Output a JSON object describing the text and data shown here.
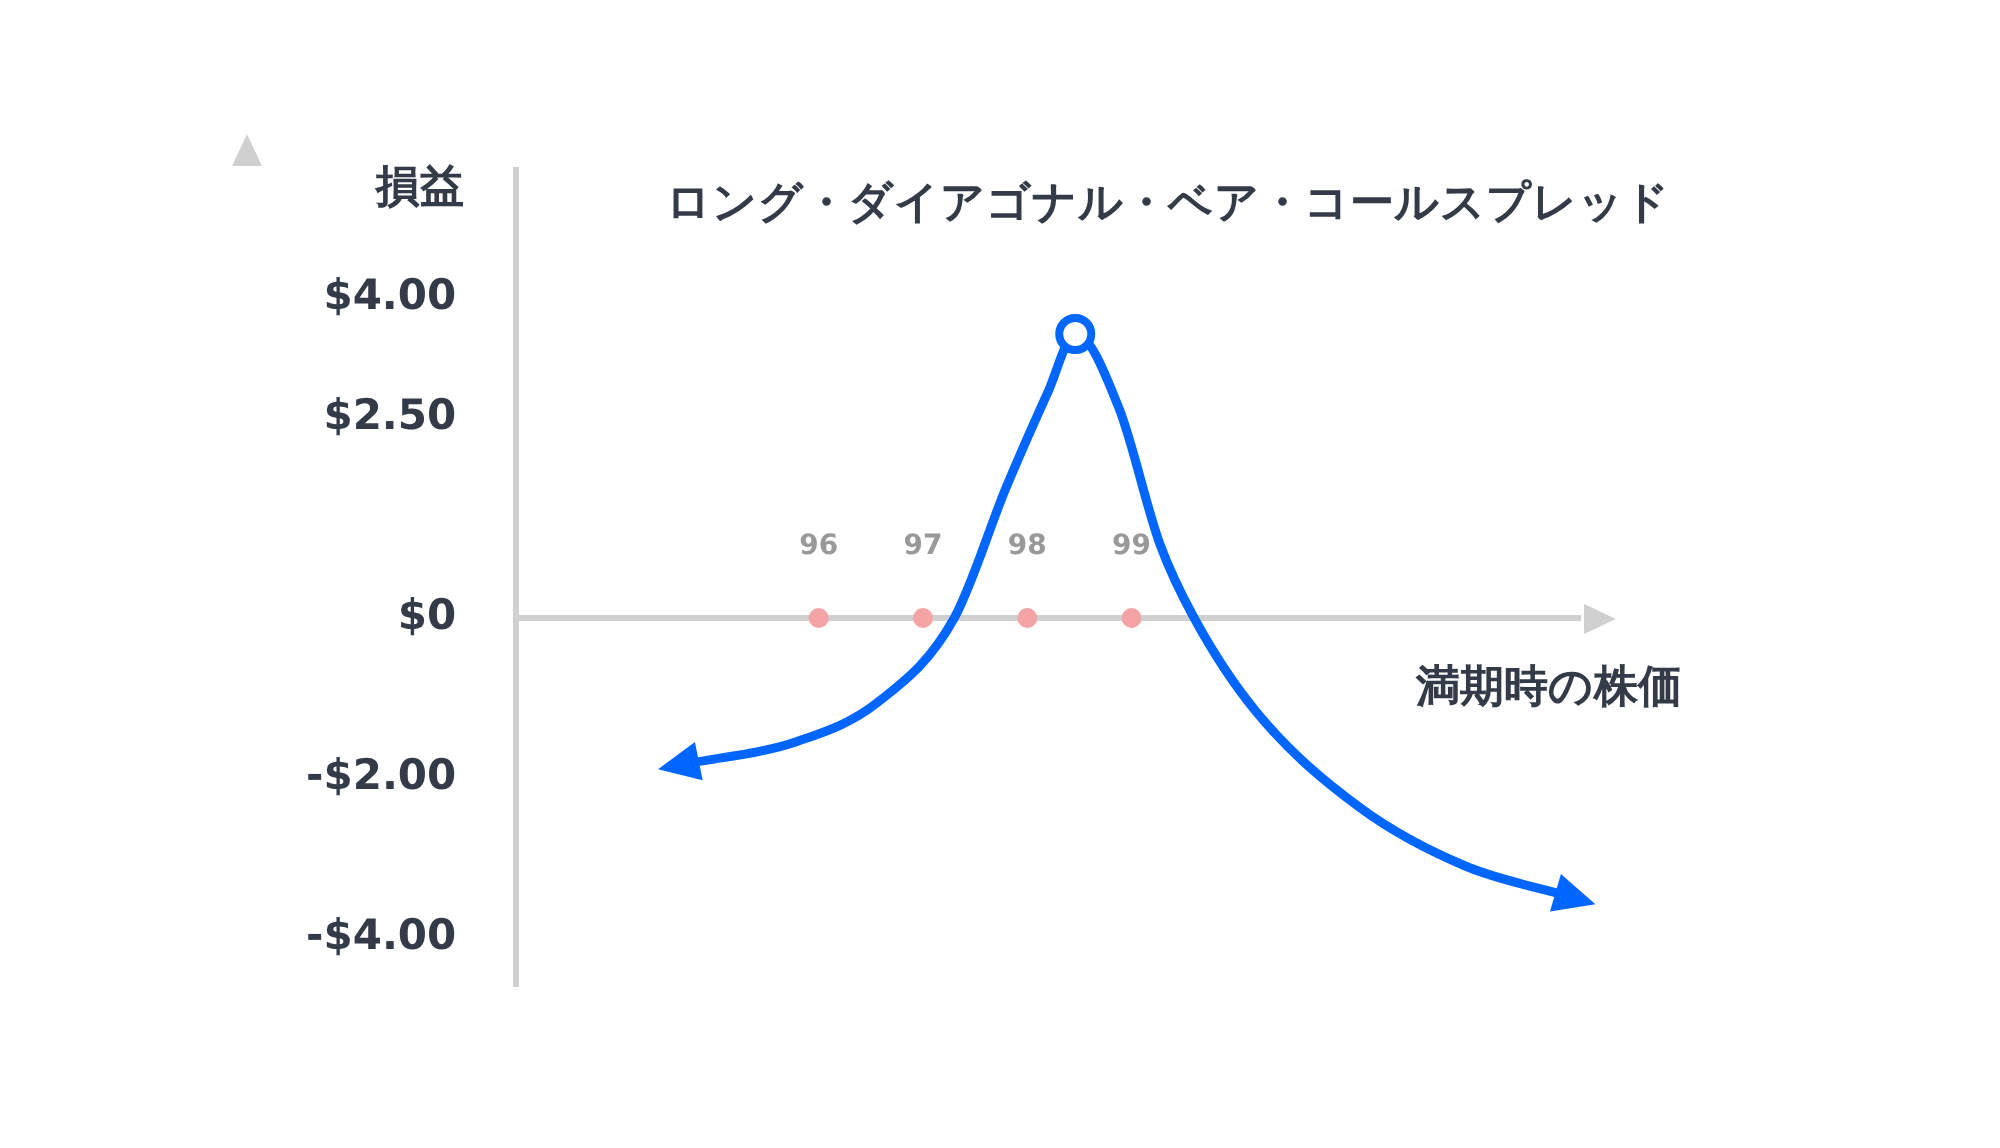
{
  "chart_data": {
    "type": "line",
    "title": "ロング・ダイアゴナル・ベア・コールスプレッド",
    "xlabel": "満期時の株価",
    "ylabel": "損益",
    "xlim": [
      93.1,
      103.3
    ],
    "ylim": [
      -4.6,
      5.6
    ],
    "xticks": [
      96,
      97,
      98,
      99
    ],
    "yticks": [
      {
        "value": 4,
        "label": "$4.00"
      },
      {
        "value": 2.5,
        "label": "$2.50"
      },
      {
        "value": 0,
        "label": "$0"
      },
      {
        "value": -2,
        "label": "-$2.00"
      },
      {
        "value": -4,
        "label": "-$4.00"
      }
    ],
    "grid": false,
    "legend": false,
    "series": [
      {
        "color": "#0066ff",
        "marker": "none",
        "x": [
          94.7,
          95.8,
          96.56,
          97.3,
          97.8,
          98.2,
          98.46,
          98.88,
          99.27,
          99.6,
          100.2,
          101.2,
          102.2,
          103.2
        ],
        "values": [
          -1.83,
          -1.54,
          -1.06,
          0,
          1.64,
          2.83,
          3.55,
          2.62,
          0.93,
          0,
          -1.18,
          -2.38,
          -3.1,
          -3.48
        ]
      },
      {
        "type": "scatter",
        "color": "#0066ff",
        "marker": "circle",
        "x": [
          98.46
        ],
        "values": [
          3.55
        ]
      },
      {
        "type": "scatter",
        "color": "#f4a4a4",
        "marker": "circle",
        "x": [
          96,
          97,
          98,
          99
        ],
        "values": [
          0,
          0,
          0,
          0
        ]
      }
    ]
  }
}
